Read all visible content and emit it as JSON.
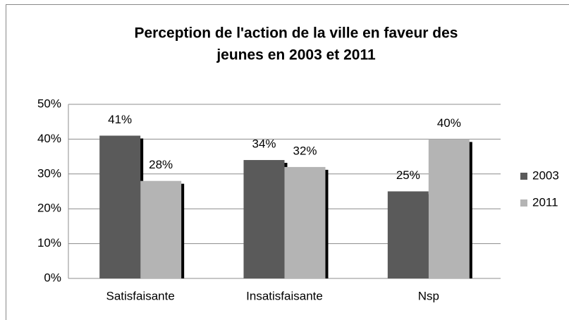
{
  "chart_data": {
    "type": "bar",
    "title": [
      "Perception de l'action de la ville en faveur des",
      "jeunes en 2003 et 2011"
    ],
    "categories": [
      "Satisfaisante",
      "Insatisfaisante",
      "Nsp"
    ],
    "series": [
      {
        "name": "2003",
        "color": "#5a5a5a",
        "values": [
          41,
          34,
          25
        ],
        "value_labels": [
          "41%",
          "34%",
          "25%"
        ]
      },
      {
        "name": "2011",
        "color": "#b4b4b4",
        "values": [
          28,
          32,
          40
        ],
        "value_labels": [
          "28%",
          "32%",
          "40%"
        ]
      }
    ],
    "ylim": [
      0,
      50
    ],
    "yticks": [
      {
        "value": 0,
        "label": "0%"
      },
      {
        "value": 10,
        "label": "10%"
      },
      {
        "value": 20,
        "label": "20%"
      },
      {
        "value": 30,
        "label": "30%"
      },
      {
        "value": 40,
        "label": "40%"
      },
      {
        "value": 50,
        "label": "50%"
      }
    ],
    "grid": true,
    "legend": "right"
  }
}
